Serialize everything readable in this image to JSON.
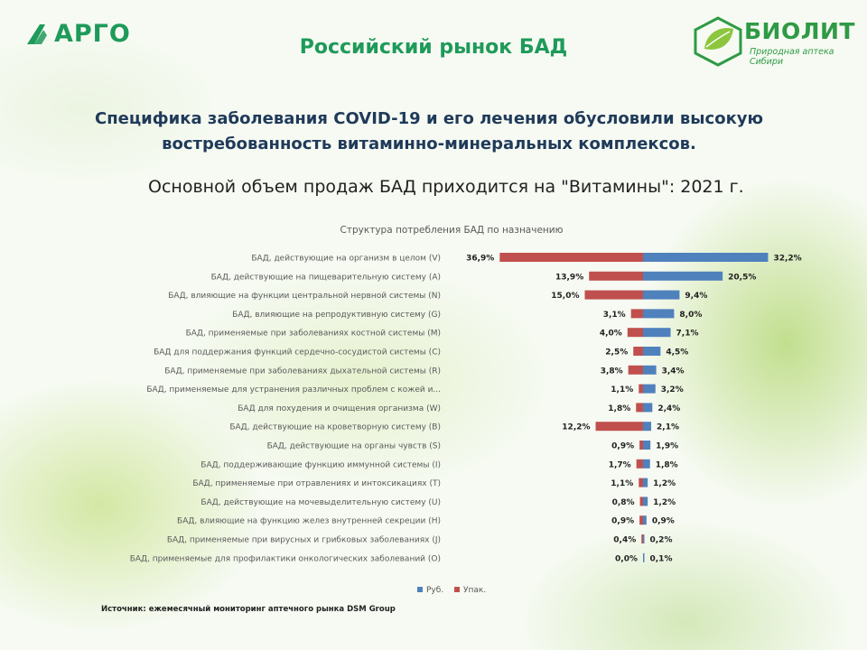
{
  "header": {
    "left_logo": "АРГО",
    "title": "Российский рынок БАД",
    "right_logo_name": "БИОЛИТ",
    "right_logo_tagline": "Природная аптека Сибири"
  },
  "headline": {
    "line1": "Специфика заболевания COVID-19 и его лечения обусловили высокую",
    "line2": "востребованность витаминно-минеральных комплексов."
  },
  "subheadline": "Основной объем продаж БАД приходится на \"Витамины\": 2021 г.",
  "colors": {
    "rub": "#4f81bd",
    "pack": "#c0504d",
    "brand_green": "#1e9a5a"
  },
  "chart_data": {
    "type": "bar",
    "orientation": "horizontal-diverging",
    "title": "Структура потребления БАД по назначению",
    "categories": [
      "БАД, действующие на организм в целом (V)",
      "БАД, действующие на пищеварительную систему (A)",
      "БАД, влияющие на функции центральной нервной системы (N)",
      "БАД, влияющие на репродуктивную систему (G)",
      "БАД, применяемые при заболеваниях костной системы (M)",
      "БАД для поддержания функций сердечно-сосудистой системы (C)",
      "БАД, применяемые при заболеваниях дыхательной системы (R)",
      "БАД, применяемые для устранения различных проблем с кожей и...",
      "БАД для похудения и очищения организма (W)",
      "БАД, действующие на кроветворную систему (B)",
      "БАД, действующие на органы чувств (S)",
      "БАД, поддерживающие функцию иммунной системы (I)",
      "БАД, применяемые при отравлениях и интоксикациях (T)",
      "БАД, действующие на мочевыделительную систему (U)",
      "БАД, влияющие на функцию желез внутренней секреции (H)",
      "БАД, применяемые при вирусных и грибковых заболеваниях (J)",
      "БАД, применяемые для профилактики онкологических заболеваний (O)"
    ],
    "series": [
      {
        "name": "Руб.",
        "side": "right",
        "values": [
          32.2,
          20.5,
          9.4,
          8.0,
          7.1,
          4.5,
          3.4,
          3.2,
          2.4,
          2.1,
          1.9,
          1.8,
          1.2,
          1.2,
          0.9,
          0.2,
          0.1
        ],
        "labels": [
          "32,2%",
          "20,5%",
          "9,4%",
          "8,0%",
          "7,1%",
          "4,5%",
          "3,4%",
          "3,2%",
          "2,4%",
          "2,1%",
          "1,9%",
          "1,8%",
          "1,2%",
          "1,2%",
          "0,9%",
          "0,2%",
          "0,1%"
        ]
      },
      {
        "name": "Упак.",
        "side": "left",
        "values": [
          36.9,
          13.9,
          15.0,
          3.1,
          4.0,
          2.5,
          3.8,
          1.1,
          1.8,
          12.2,
          0.9,
          1.7,
          1.1,
          0.8,
          0.9,
          0.4,
          0.0
        ],
        "labels": [
          "36,9%",
          "13,9%",
          "15,0%",
          "3,1%",
          "4,0%",
          "2,5%",
          "3,8%",
          "1,1%",
          "1,8%",
          "12,2%",
          "0,9%",
          "1,7%",
          "1,1%",
          "0,8%",
          "0,9%",
          "0,4%",
          "0,0%"
        ]
      }
    ],
    "legend": "bottom-right",
    "grid": false
  },
  "source": "Источник: ежемесячный мониторинг аптечного рынка DSM Group"
}
